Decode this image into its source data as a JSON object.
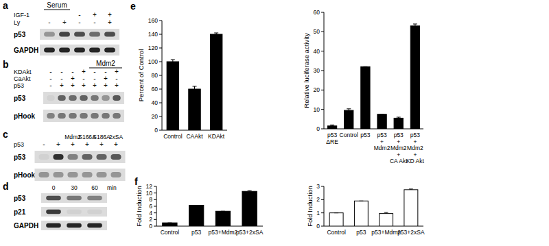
{
  "panel_letters": [
    "a",
    "b",
    "c",
    "d",
    "e",
    "f"
  ],
  "blots": [
    {
      "bracket": {
        "text": "Serum",
        "lanes": [
          0,
          1
        ]
      },
      "conditions": [
        {
          "label": "IGF-1",
          "values": [
            null,
            null,
            "-",
            "+",
            "+"
          ]
        },
        {
          "label": "Ly",
          "values": [
            "-",
            "+",
            "-",
            "-",
            "+"
          ]
        }
      ],
      "rows": [
        {
          "label": "p53",
          "intensity": [
            0.35,
            0.75,
            0.7,
            0.55,
            0.7
          ]
        },
        {
          "label": "GAPDH",
          "intensity": [
            0.9,
            0.9,
            0.9,
            0.9,
            0.9
          ]
        }
      ]
    },
    {
      "bracket": {
        "text": "Mdm2",
        "lanes": [
          4,
          6
        ]
      },
      "conditions": [
        {
          "label": "KDAkt",
          "values": [
            "-",
            "-",
            "-",
            "+",
            "-",
            "-",
            "+"
          ]
        },
        {
          "label": "CaAkt",
          "values": [
            "-",
            "-",
            "+",
            "-",
            "-",
            "+",
            "-"
          ]
        },
        {
          "label": "p53",
          "values": [
            "-",
            "+",
            "+",
            "+",
            "+",
            "+",
            "+"
          ]
        }
      ],
      "rows": [
        {
          "label": "p53",
          "intensity": [
            0.05,
            0.6,
            0.55,
            0.6,
            0.5,
            0.35,
            0.65
          ]
        },
        {
          "label": "pHook",
          "intensity": [
            0.45,
            0.5,
            0.5,
            0.5,
            0.5,
            0.5,
            0.5
          ]
        }
      ]
    },
    {
      "column_labels": [
        null,
        null,
        "Mdm2",
        "S166A",
        "S186A",
        "2xSA"
      ],
      "conditions": [
        {
          "label": "p53",
          "values": [
            "-",
            "+",
            "+",
            "+",
            "+",
            "+"
          ]
        }
      ],
      "rows": [
        {
          "label": "p53",
          "intensity": [
            0.05,
            0.85,
            0.45,
            0.6,
            0.6,
            0.65
          ]
        },
        {
          "label": "pHook",
          "intensity": [
            0.35,
            0.35,
            0.35,
            0.35,
            0.35,
            0.35
          ]
        }
      ]
    },
    {
      "column_labels": [
        "0",
        "30",
        "60"
      ],
      "unit": "min",
      "rows": [
        {
          "label": "p53",
          "intensity": [
            0.7,
            0.5,
            0.45
          ]
        },
        {
          "label": "p21",
          "intensity": [
            0.8,
            0.05,
            0.05
          ]
        },
        {
          "label": "GAPDH",
          "intensity": [
            0.9,
            0.9,
            0.9
          ]
        }
      ]
    }
  ],
  "chart_data": [
    {
      "type": "bar",
      "ylabel": "Percent of Control",
      "categories": [
        "Control",
        "CAAkt",
        "KDAkt"
      ],
      "values": [
        100,
        60,
        140
      ],
      "errors": [
        3,
        4,
        2
      ],
      "color": "#000000",
      "ylim": [
        0,
        160
      ],
      "yticks": [
        0,
        20,
        40,
        60,
        80,
        100,
        120,
        140,
        160
      ]
    },
    {
      "type": "bar",
      "ylabel": "Relative luciferase activity",
      "categories": [
        "p53\nΔRE",
        "Control",
        "p53",
        "p53\n+\nMdm2",
        "p53\n+\nMdm2\n+\nCA Akt",
        "p53\n+\nMdm2\n+\nKD Akt"
      ],
      "values": [
        1.5,
        9.5,
        32,
        7.5,
        5.5,
        53
      ],
      "errors": [
        0.5,
        0.8,
        0,
        0,
        0.5,
        1
      ],
      "color": "#000000",
      "ylim": [
        0,
        60
      ],
      "yticks": [
        0,
        10,
        20,
        30,
        40,
        50,
        60
      ]
    },
    {
      "type": "bar",
      "ylabel": "Fold Induction",
      "categories": [
        "Control",
        "p53",
        "p53+Mdm2",
        "p53+2xSA"
      ],
      "values": [
        1,
        6.3,
        4.5,
        10.5
      ],
      "errors": [
        0,
        0,
        0,
        0.2
      ],
      "color": "#000000",
      "ylim": [
        0,
        12
      ],
      "yticks": [
        0,
        2,
        4,
        6,
        8,
        10,
        12
      ]
    },
    {
      "type": "bar",
      "ylabel": "Fold Induction",
      "categories": [
        "Control",
        "p53",
        "p53+Mdm2",
        "p53+2xSA"
      ],
      "values": [
        1,
        1.9,
        0.95,
        2.75
      ],
      "errors": [
        0,
        0,
        0.08,
        0.05
      ],
      "color": "#ffffff",
      "ylim": [
        0,
        3
      ],
      "yticks": [
        0,
        1,
        2,
        3
      ]
    }
  ]
}
